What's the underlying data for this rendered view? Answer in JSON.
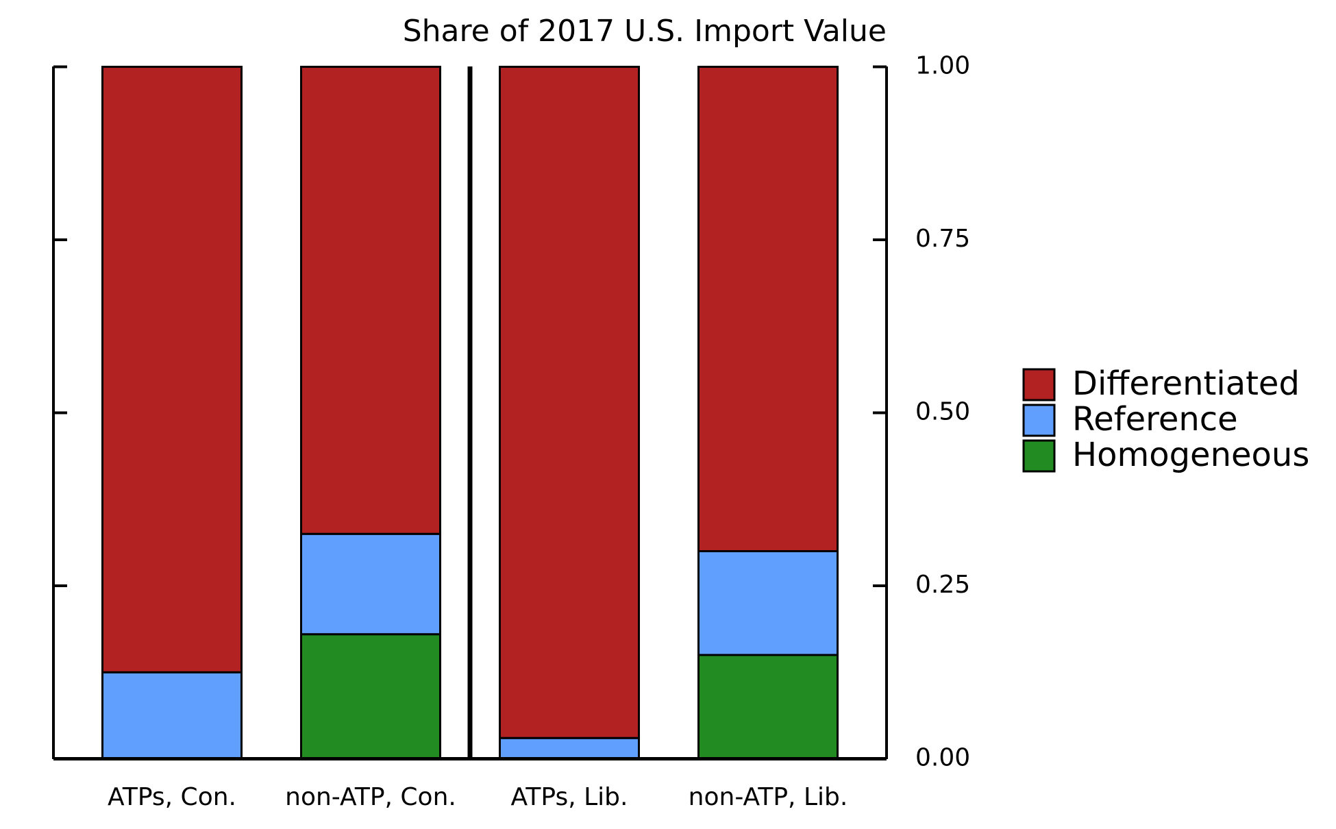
{
  "chart_data": {
    "type": "bar",
    "stacked": true,
    "title": "Share of 2017 U.S. Import Value",
    "categories": [
      "ATPs, Con.",
      "non-ATP, Con.",
      "ATPs, Lib.",
      "non-ATP, Lib."
    ],
    "series": [
      {
        "name": "Homogeneous",
        "color": "#228b22",
        "values": [
          0,
          0.18,
          0,
          0.15
        ]
      },
      {
        "name": "Reference",
        "color": "#619ffe",
        "values": [
          0.125,
          0.145,
          0.03,
          0.15
        ]
      },
      {
        "name": "Differentiated",
        "color": "#b22222",
        "values": [
          0.875,
          0.675,
          0.97,
          0.7
        ]
      }
    ],
    "ylim": [
      0,
      1
    ],
    "yticks": [
      {
        "value": 0,
        "label": "0.00"
      },
      0.25,
      {
        "value": 0.5,
        "label": "0.50"
      },
      0.75,
      {
        "value": 1,
        "label": "1.00"
      }
    ],
    "legend": "right"
  }
}
